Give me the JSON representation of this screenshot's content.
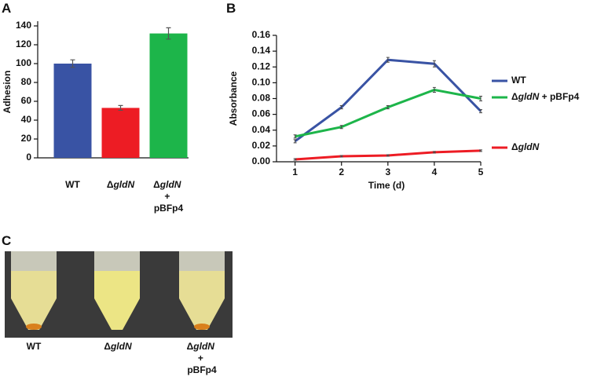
{
  "chart_data": [
    {
      "type": "bar",
      "panel": "A",
      "y_label": "Adhesion",
      "categories": [
        "WT",
        "ΔgldN",
        "ΔgldN + pBFp4"
      ],
      "values": [
        100,
        53,
        132
      ],
      "errors": [
        4,
        2.5,
        6
      ],
      "colors": [
        "#3953a4",
        "#ed1c24",
        "#1db54a"
      ],
      "ylim": [
        0,
        140
      ],
      "yticks": [
        0,
        20,
        40,
        60,
        80,
        100,
        120,
        140
      ]
    },
    {
      "type": "line",
      "panel": "B",
      "y_label": "Absorbance",
      "x_label": "Time (d)",
      "x": [
        1,
        2,
        3,
        4,
        5
      ],
      "series": [
        {
          "name": "WT",
          "color": "#3953a4",
          "values": [
            0.026,
            0.069,
            0.129,
            0.124,
            0.064
          ],
          "errors": [
            0.002,
            0.002,
            0.003,
            0.004,
            0.002
          ]
        },
        {
          "name": "ΔgldN + pBFp4",
          "color": "#1db54a",
          "values": [
            0.032,
            0.044,
            0.069,
            0.091,
            0.08
          ],
          "errors": [
            0.002,
            0.002,
            0.002,
            0.003,
            0.003
          ]
        },
        {
          "name": "ΔgldN",
          "color": "#ed1c24",
          "values": [
            0.003,
            0.007,
            0.008,
            0.012,
            0.014
          ],
          "errors": [
            0.001,
            0.001,
            0.001,
            0.001,
            0.001
          ]
        }
      ],
      "xlim": [
        0.6,
        5
      ],
      "xticks": [
        1,
        2,
        3,
        4,
        5
      ],
      "ylim": [
        0,
        0.16
      ],
      "yticks": [
        {
          "value": 0,
          "label": "0.00"
        },
        {
          "value": 0.02,
          "label": "0.02"
        },
        {
          "value": 0.04,
          "label": "0.04"
        },
        {
          "value": 0.06,
          "label": "0.06"
        },
        {
          "value": 0.08,
          "label": "0.08"
        },
        {
          "value": 0.1,
          "label": "0.10"
        },
        {
          "value": 0.12,
          "label": "0.12"
        },
        {
          "value": 0.14,
          "label": "0.14"
        },
        {
          "value": 0.16,
          "label": "0.16"
        }
      ]
    }
  ],
  "photo": {
    "panel": "C",
    "labels": [
      "WT",
      "ΔgldN",
      "ΔgldN + pBFp4"
    ]
  }
}
